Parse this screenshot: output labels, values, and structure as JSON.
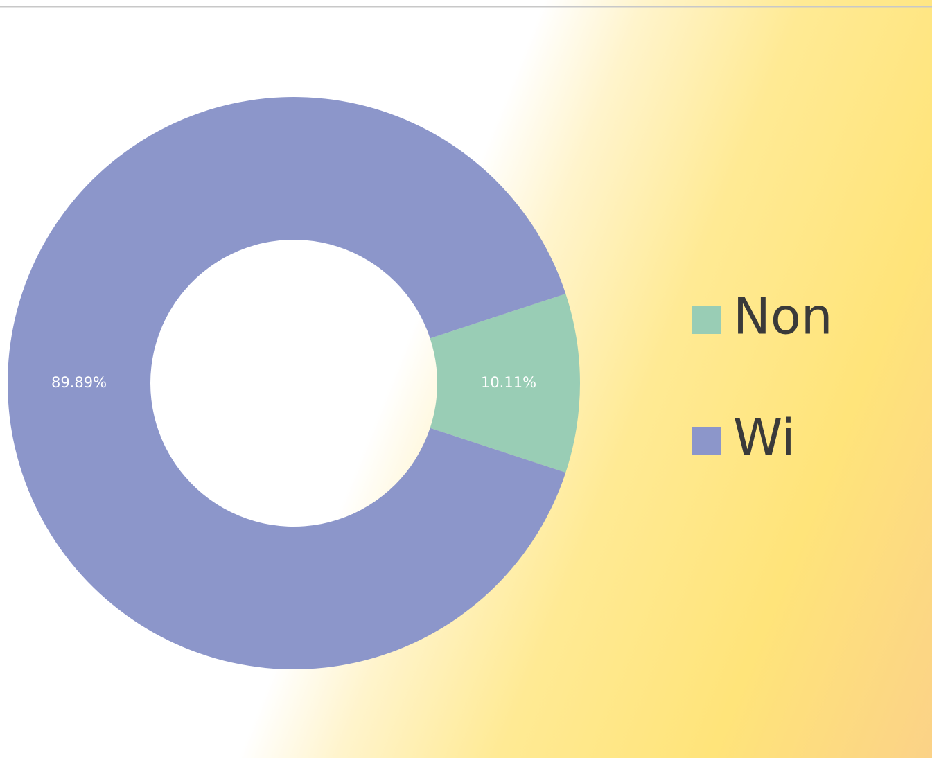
{
  "chart_data": {
    "type": "donut",
    "categories": [
      "Non",
      "Wi"
    ],
    "values": [
      10.11,
      89.89
    ],
    "value_labels": [
      "10.11%",
      "89.89%"
    ],
    "colors": [
      "#99cdb5",
      "#8c96ca"
    ],
    "legend": "right"
  }
}
